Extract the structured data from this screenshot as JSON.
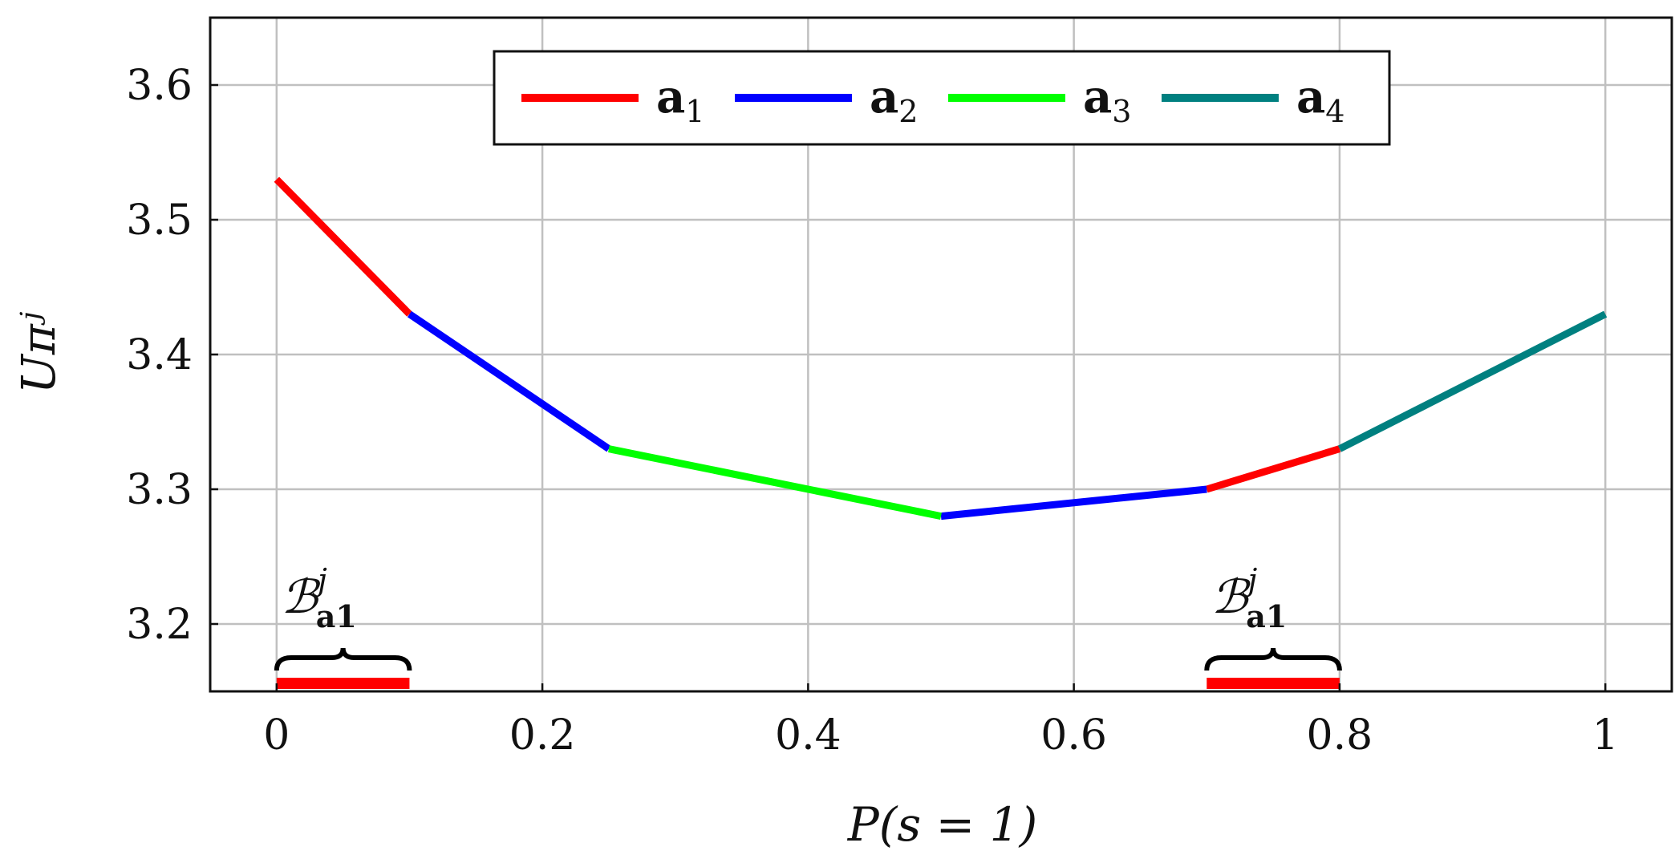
{
  "chart_data": {
    "type": "line",
    "xlabel": "P(s = 1)",
    "ylabel": "Uπʲ",
    "xlim": [
      -0.05,
      1.05
    ],
    "ylim": [
      3.15,
      3.65
    ],
    "x_ticks": [
      0,
      0.2,
      0.4,
      0.6,
      0.8,
      1
    ],
    "x_tick_labels": [
      "0",
      "0.2",
      "0.4",
      "0.6",
      "0.8",
      "1"
    ],
    "y_ticks": [
      3.2,
      3.3,
      3.4,
      3.5,
      3.6
    ],
    "y_tick_labels": [
      "3.2",
      "3.3",
      "3.4",
      "3.5",
      "3.6"
    ],
    "grid": true,
    "legend_position": "top-center",
    "series": [
      {
        "name": "a1",
        "legend_main": "a",
        "legend_sub": "1",
        "color": "#ff0000",
        "segments": [
          [
            [
              0,
              3.53
            ],
            [
              0.1,
              3.43
            ]
          ],
          [
            [
              0.7,
              3.3
            ],
            [
              0.8,
              3.33
            ]
          ]
        ]
      },
      {
        "name": "a2",
        "legend_main": "a",
        "legend_sub": "2",
        "color": "#0000ff",
        "segments": [
          [
            [
              0.1,
              3.43
            ],
            [
              0.25,
              3.33
            ]
          ],
          [
            [
              0.5,
              3.28
            ],
            [
              0.7,
              3.3
            ]
          ]
        ]
      },
      {
        "name": "a3",
        "legend_main": "a",
        "legend_sub": "3",
        "color": "#00ff00",
        "segments": [
          [
            [
              0.25,
              3.33
            ],
            [
              0.5,
              3.28
            ]
          ]
        ]
      },
      {
        "name": "a4",
        "legend_main": "a",
        "legend_sub": "4",
        "color": "#008080",
        "segments": [
          [
            [
              0.8,
              3.33
            ],
            [
              1.0,
              3.43
            ]
          ]
        ]
      }
    ],
    "annotations": [
      {
        "label_main": "ℬ",
        "label_sup": "j",
        "label_sub": "a1",
        "x_range": [
          0,
          0.1
        ],
        "color": "#ff0000"
      },
      {
        "label_main": "ℬ",
        "label_sup": "j",
        "label_sub": "a1",
        "x_range": [
          0.7,
          0.8
        ],
        "color": "#ff0000"
      }
    ]
  }
}
